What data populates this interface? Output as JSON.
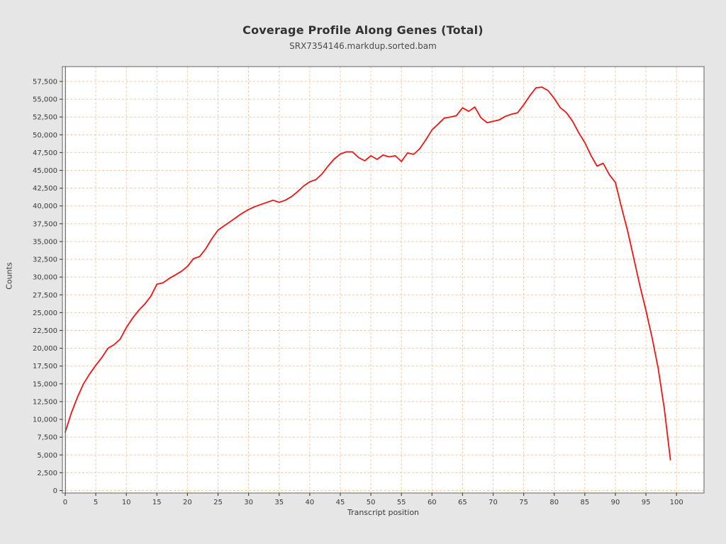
{
  "chart_data": {
    "type": "line",
    "title": "Coverage Profile Along Genes (Total)",
    "subtitle": "SRX7354146.markdup.sorted.bam",
    "xlabel": "Transcript position",
    "ylabel": "Counts",
    "xlim": [
      -0.46,
      104.5
    ],
    "ylim": [
      -350,
      59590
    ],
    "x_ticks": [
      0,
      5,
      10,
      15,
      20,
      25,
      30,
      35,
      40,
      45,
      50,
      55,
      60,
      65,
      70,
      75,
      80,
      85,
      90,
      95,
      100
    ],
    "y_ticks": [
      0,
      2500,
      5000,
      7500,
      10000,
      12500,
      15000,
      17500,
      20000,
      22500,
      25000,
      27500,
      30000,
      32500,
      35000,
      37500,
      40000,
      42500,
      45000,
      47500,
      50000,
      52500,
      55000,
      57500
    ],
    "grid": {
      "style": "dashed",
      "color": "#f3c7a2",
      "on": true
    },
    "legend": "none",
    "colors": {
      "background": "#e6e6e6",
      "plot_background": "#ffffff",
      "line": "#f01414",
      "border": "#8a8a8a",
      "spine": "#666666",
      "tick": "#4a4a4a"
    },
    "series": [
      {
        "name": "Total coverage",
        "x0": 0,
        "dx": 1,
        "values": [
          8200,
          10900,
          13100,
          15000,
          16400,
          17600,
          18700,
          20000,
          20500,
          21300,
          22900,
          24200,
          25300,
          26200,
          27300,
          29000,
          29200,
          29800,
          30300,
          30800,
          31500,
          32600,
          32900,
          34000,
          35400,
          36600,
          37200,
          37800,
          38400,
          39000,
          39500,
          39900,
          40200,
          40500,
          40800,
          40500,
          40800,
          41300,
          42000,
          42800,
          43400,
          43700,
          44500,
          45600,
          46600,
          47300,
          47600,
          47600,
          46800,
          46350,
          47050,
          46550,
          47150,
          46900,
          47050,
          46250,
          47450,
          47250,
          48050,
          49300,
          50700,
          51500,
          52350,
          52500,
          52700,
          53800,
          53300,
          53900,
          52400,
          51700,
          51900,
          52100,
          52600,
          52900,
          53100,
          54200,
          55500,
          56600,
          56700,
          56200,
          55100,
          53800,
          53100,
          51900,
          50300,
          48900,
          47100,
          45600,
          46000,
          44400,
          43300,
          39800,
          36500,
          32700,
          28800,
          25300,
          21500,
          17200,
          11500,
          4300
        ]
      }
    ]
  }
}
